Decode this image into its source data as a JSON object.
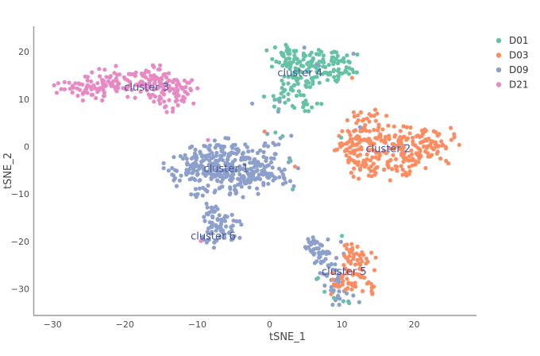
{
  "chart_data": {
    "type": "scatter",
    "title": "",
    "xlabel": "tSNE_1",
    "ylabel": "tSNE_2",
    "xlim": [
      -32.6,
      28.6
    ],
    "ylim": [
      -35.6,
      25.4
    ],
    "xticks": [
      -30,
      -20,
      -10,
      0,
      10,
      20
    ],
    "yticks": [
      -30,
      -20,
      -10,
      0,
      10,
      20
    ],
    "grid": false,
    "axis_line_color": "#999999",
    "tick_label_color": "#4c4c4c",
    "annotation_color": "#44549b",
    "marker_radius": 2.6,
    "legend_position": "top-right",
    "legend": [
      {
        "name": "D01",
        "color": "#66c2a5"
      },
      {
        "name": "D03",
        "color": "#fc8d62"
      },
      {
        "name": "D09",
        "color": "#8da0cb"
      },
      {
        "name": "D21",
        "color": "#e78ac3"
      }
    ],
    "point_groups": [
      {
        "cluster": "cluster 1",
        "group": "D09",
        "seed": 11,
        "blobs": [
          [
            -7.5,
            -5.0,
            2.6,
            2.2,
            110
          ],
          [
            -3.0,
            -6.5,
            2.2,
            1.8,
            70
          ],
          [
            -5.0,
            -1.5,
            2.6,
            1.6,
            60
          ],
          [
            -10.5,
            -3.5,
            1.8,
            1.6,
            40
          ],
          [
            -1.0,
            -3.0,
            1.8,
            1.6,
            35
          ],
          [
            0.8,
            -6.5,
            1.4,
            1.4,
            25
          ],
          [
            -12.0,
            -6.0,
            1.2,
            1.0,
            15
          ],
          [
            -8.0,
            -9.5,
            1.5,
            0.8,
            15
          ]
        ]
      },
      {
        "cluster": "cluster 2",
        "group": "D03",
        "seed": 22,
        "blobs": [
          [
            12.5,
            0.5,
            1.6,
            2.2,
            55
          ],
          [
            16.5,
            1.0,
            2.2,
            2.4,
            75
          ],
          [
            20.5,
            0.0,
            2.2,
            2.0,
            60
          ],
          [
            23.5,
            0.5,
            1.3,
            1.5,
            25
          ],
          [
            14.0,
            -4.5,
            1.8,
            1.2,
            28
          ],
          [
            18.5,
            -4.0,
            1.8,
            1.2,
            22
          ],
          [
            13.0,
            5.5,
            1.3,
            1.3,
            20
          ],
          [
            11.0,
            2.0,
            0.8,
            1.5,
            12
          ]
        ]
      },
      {
        "cluster": "cluster 3",
        "group": "D21",
        "seed": 33,
        "blobs": [
          [
            -26.5,
            12.3,
            1.5,
            0.9,
            35
          ],
          [
            -22.5,
            13.2,
            1.8,
            1.5,
            45
          ],
          [
            -18.5,
            13.8,
            2.0,
            1.6,
            55
          ],
          [
            -15.0,
            13.5,
            1.6,
            1.6,
            45
          ],
          [
            -13.5,
            10.5,
            1.3,
            1.5,
            35
          ],
          [
            -11.8,
            12.8,
            0.8,
            1.0,
            15
          ]
        ]
      },
      {
        "cluster": "cluster 4",
        "group": "D01",
        "seed": 44,
        "blobs": [
          [
            3.2,
            18.5,
            1.6,
            1.7,
            45
          ],
          [
            6.5,
            17.0,
            1.8,
            1.8,
            55
          ],
          [
            9.8,
            16.8,
            1.3,
            1.7,
            40
          ],
          [
            4.5,
            13.5,
            1.5,
            1.3,
            30
          ],
          [
            2.0,
            10.5,
            1.2,
            1.3,
            22
          ],
          [
            5.5,
            9.0,
            1.0,
            0.8,
            10
          ]
        ]
      },
      {
        "cluster": "cluster 5",
        "group": "D09",
        "seed": 55,
        "blobs": [
          [
            6.3,
            -20.5,
            0.9,
            1.0,
            18
          ],
          [
            7.5,
            -23.5,
            1.2,
            1.5,
            30
          ],
          [
            8.8,
            -27.5,
            1.0,
            1.5,
            22
          ],
          [
            9.5,
            -31.5,
            0.9,
            0.8,
            12
          ]
        ]
      },
      {
        "cluster": "cluster 5",
        "group": "D03",
        "seed": 66,
        "blobs": [
          [
            11.5,
            -21.5,
            0.8,
            1.0,
            16
          ],
          [
            12.3,
            -24.5,
            1.1,
            1.5,
            30
          ],
          [
            11.5,
            -28.5,
            1.3,
            1.3,
            30
          ],
          [
            13.2,
            -30.0,
            0.8,
            0.8,
            10
          ]
        ]
      },
      {
        "cluster": "cluster 6",
        "group": "D09",
        "seed": 77,
        "blobs": [
          [
            -7.7,
            -13.0,
            0.6,
            0.9,
            14
          ],
          [
            -7.6,
            -15.8,
            0.9,
            1.0,
            18
          ],
          [
            -6.9,
            -18.3,
            1.3,
            1.1,
            26
          ],
          [
            -5.3,
            -16.0,
            0.9,
            0.7,
            12
          ],
          [
            -8.3,
            -20.3,
            0.7,
            0.7,
            8
          ]
        ]
      }
    ],
    "stray_points": [
      {
        "group": "D21",
        "x": -8.5,
        "y": 1.4
      },
      {
        "group": "D21",
        "x": -9.5,
        "y": -19.9
      },
      {
        "group": "D03",
        "x": -0.7,
        "y": 3.2
      },
      {
        "group": "D03",
        "x": 3.5,
        "y": -4.2
      },
      {
        "group": "D03",
        "x": 11.4,
        "y": 14.5
      },
      {
        "group": "D03",
        "x": 14.6,
        "y": 7.8
      },
      {
        "group": "D03",
        "x": 12.2,
        "y": 6.6
      },
      {
        "group": "D09",
        "x": 4.8,
        "y": 20.9
      },
      {
        "group": "D09",
        "x": 11.6,
        "y": 19.6
      },
      {
        "group": "D09",
        "x": 6.7,
        "y": 17.2
      },
      {
        "group": "D09",
        "x": 1.4,
        "y": 9.5
      },
      {
        "group": "D09",
        "x": 1.2,
        "y": 7.4
      },
      {
        "group": "D09",
        "x": -2.4,
        "y": 9.1
      },
      {
        "group": "D09",
        "x": 1.5,
        "y": 1.8
      },
      {
        "group": "D09",
        "x": 3.0,
        "y": 2.3
      },
      {
        "group": "D09",
        "x": -0.3,
        "y": 2.7
      },
      {
        "group": "D09",
        "x": 12.5,
        "y": 4.1
      },
      {
        "group": "D09",
        "x": 12.4,
        "y": -32.8
      },
      {
        "group": "D01",
        "x": 0.8,
        "y": 3.0
      },
      {
        "group": "D01",
        "x": 1.8,
        "y": 2.2
      },
      {
        "group": "D01",
        "x": 2.9,
        "y": -3.0
      },
      {
        "group": "D01",
        "x": 3.2,
        "y": -9.0
      },
      {
        "group": "D01",
        "x": 9.9,
        "y": 1.9
      },
      {
        "group": "D01",
        "x": 10.0,
        "y": -18.8
      },
      {
        "group": "D01",
        "x": 6.7,
        "y": -27.7
      },
      {
        "group": "D01",
        "x": 7.6,
        "y": -30.6
      },
      {
        "group": "D01",
        "x": 10.2,
        "y": -32.6
      },
      {
        "group": "D01",
        "x": 8.9,
        "y": -31.9
      },
      {
        "group": "D01",
        "x": 11.0,
        "y": -33.0
      }
    ],
    "annotations": [
      {
        "text": "cluster 1",
        "x": -6.0,
        "y": -4.7
      },
      {
        "text": "cluster 2",
        "x": 16.4,
        "y": -0.5
      },
      {
        "text": "cluster 3",
        "x": -17.0,
        "y": 12.5
      },
      {
        "text": "cluster 4",
        "x": 4.2,
        "y": 15.5
      },
      {
        "text": "cluster 5",
        "x": 10.3,
        "y": -26.4
      },
      {
        "text": "cluster 6",
        "x": -7.8,
        "y": -18.9
      }
    ]
  }
}
